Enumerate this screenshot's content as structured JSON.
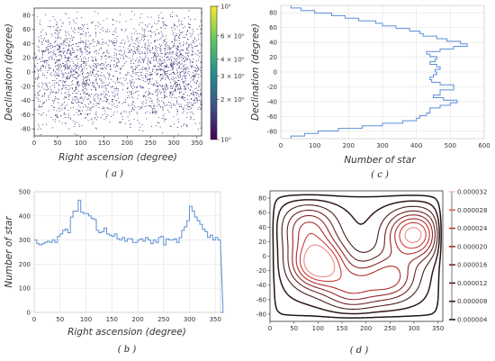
{
  "chart_data": [
    {
      "id": "a",
      "type": "scatter",
      "caption": "( a )",
      "xlabel": "Right ascension (degree)",
      "ylabel": "Declination (degree)",
      "xlim": [
        0,
        360
      ],
      "ylim": [
        -90,
        90
      ],
      "xticks": [
        "0",
        "50",
        "100",
        "150",
        "200",
        "250",
        "300",
        "350"
      ],
      "yticks": [
        "80",
        "60",
        "40",
        "20",
        "0",
        "-20",
        "-40",
        "-60",
        "-80"
      ],
      "colorbar": {
        "scale": "log",
        "range": [
          1,
          10
        ],
        "labels": [
          "10¹",
          "6 × 10⁰",
          "4 × 10⁰",
          "3 × 10⁰",
          "2 × 10⁰",
          "10⁰"
        ],
        "colormap": [
          "#440154",
          "#3b528b",
          "#21918c",
          "#5ec962",
          "#fde725"
        ]
      },
      "point_color": "#2a1f6e",
      "clusters": [
        {
          "ra": 100,
          "dec": -30
        },
        {
          "ra": 290,
          "dec": 35
        },
        {
          "ra": 80,
          "dec": 30
        },
        {
          "ra": 300,
          "dec": -25
        }
      ],
      "grid": false
    },
    {
      "id": "b",
      "type": "step",
      "caption": "( b )",
      "xlabel": "Right ascension (degree)",
      "ylabel": "Number of star",
      "xlim": [
        0,
        360
      ],
      "ylim": [
        0,
        500
      ],
      "xticks": [
        "0",
        "50",
        "100",
        "150",
        "200",
        "250",
        "300",
        "350"
      ],
      "yticks": [
        "500",
        "400",
        "300",
        "200",
        "100",
        "0"
      ],
      "bin_width": 5,
      "values": [
        300,
        285,
        280,
        285,
        290,
        295,
        290,
        300,
        290,
        315,
        325,
        340,
        345,
        330,
        395,
        420,
        420,
        465,
        415,
        410,
        410,
        400,
        390,
        385,
        340,
        330,
        335,
        350,
        325,
        320,
        315,
        325,
        305,
        300,
        310,
        295,
        305,
        305,
        290,
        290,
        300,
        305,
        295,
        310,
        300,
        285,
        300,
        290,
        310,
        315,
        280,
        305,
        300,
        300,
        305,
        290,
        310,
        340,
        355,
        380,
        440,
        420,
        395,
        380,
        365,
        345,
        335,
        310,
        320,
        300,
        310,
        300,
        285,
        0
      ],
      "color": "#5b8fd6",
      "grid": true
    },
    {
      "id": "c",
      "type": "step",
      "orientation": "horizontal",
      "caption": "( c )",
      "xlabel": "Number of star",
      "ylabel": "Declination (degree)",
      "xlim": [
        0,
        600
      ],
      "ylim": [
        -90,
        90
      ],
      "xticks": [
        "0",
        "100",
        "200",
        "300",
        "400",
        "500",
        "600"
      ],
      "yticks": [
        "80",
        "60",
        "40",
        "20",
        "0",
        "-20",
        "-40",
        "-60",
        "-80"
      ],
      "bin_width": 5,
      "values": [
        30,
        60,
        100,
        150,
        190,
        230,
        280,
        300,
        340,
        380,
        410,
        420,
        460,
        490,
        530,
        550,
        510,
        470,
        430,
        440,
        460,
        455,
        440,
        460,
        470,
        455,
        460,
        450,
        440,
        445,
        470,
        510,
        510,
        470,
        470,
        450,
        480,
        520,
        500,
        470,
        440,
        440,
        430,
        410,
        400,
        360,
        300,
        240,
        170,
        110,
        70,
        30
      ],
      "color": "#5b8fd6",
      "grid": true
    },
    {
      "id": "d",
      "type": "contour",
      "caption": "( d )",
      "xlim": [
        0,
        360
      ],
      "ylim": [
        -90,
        90
      ],
      "xticks": [
        "0",
        "50",
        "100",
        "150",
        "200",
        "250",
        "300",
        "350"
      ],
      "yticks": [
        "80",
        "60",
        "40",
        "20",
        "0",
        "-20",
        "-40",
        "-60",
        "-80"
      ],
      "levels": [
        4e-06,
        8e-06,
        1.2e-05,
        1.6e-05,
        2e-05,
        2.4e-05,
        2.8e-05,
        3.2e-05
      ],
      "colorbar": {
        "labels": [
          "0.000032",
          "0.000028",
          "0.000024",
          "0.000020",
          "0.000016",
          "0.000012",
          "0.000008",
          "0.000004"
        ],
        "colors": [
          "#f4c1c1",
          "#e05a5a",
          "#c83737",
          "#a52a2a",
          "#7a2424",
          "#5a1f1f",
          "#3c1a1a",
          "#2a1818"
        ]
      },
      "peaks": [
        {
          "ra": 100,
          "dec": -10,
          "amp": 1.0
        },
        {
          "ra": 300,
          "dec": 30,
          "amp": 0.9
        },
        {
          "ra": 80,
          "dec": 40,
          "amp": 0.55
        },
        {
          "ra": 250,
          "dec": -30,
          "amp": 0.6
        },
        {
          "ra": 170,
          "dec": -45,
          "amp": 0.5
        }
      ],
      "grid": false
    }
  ]
}
